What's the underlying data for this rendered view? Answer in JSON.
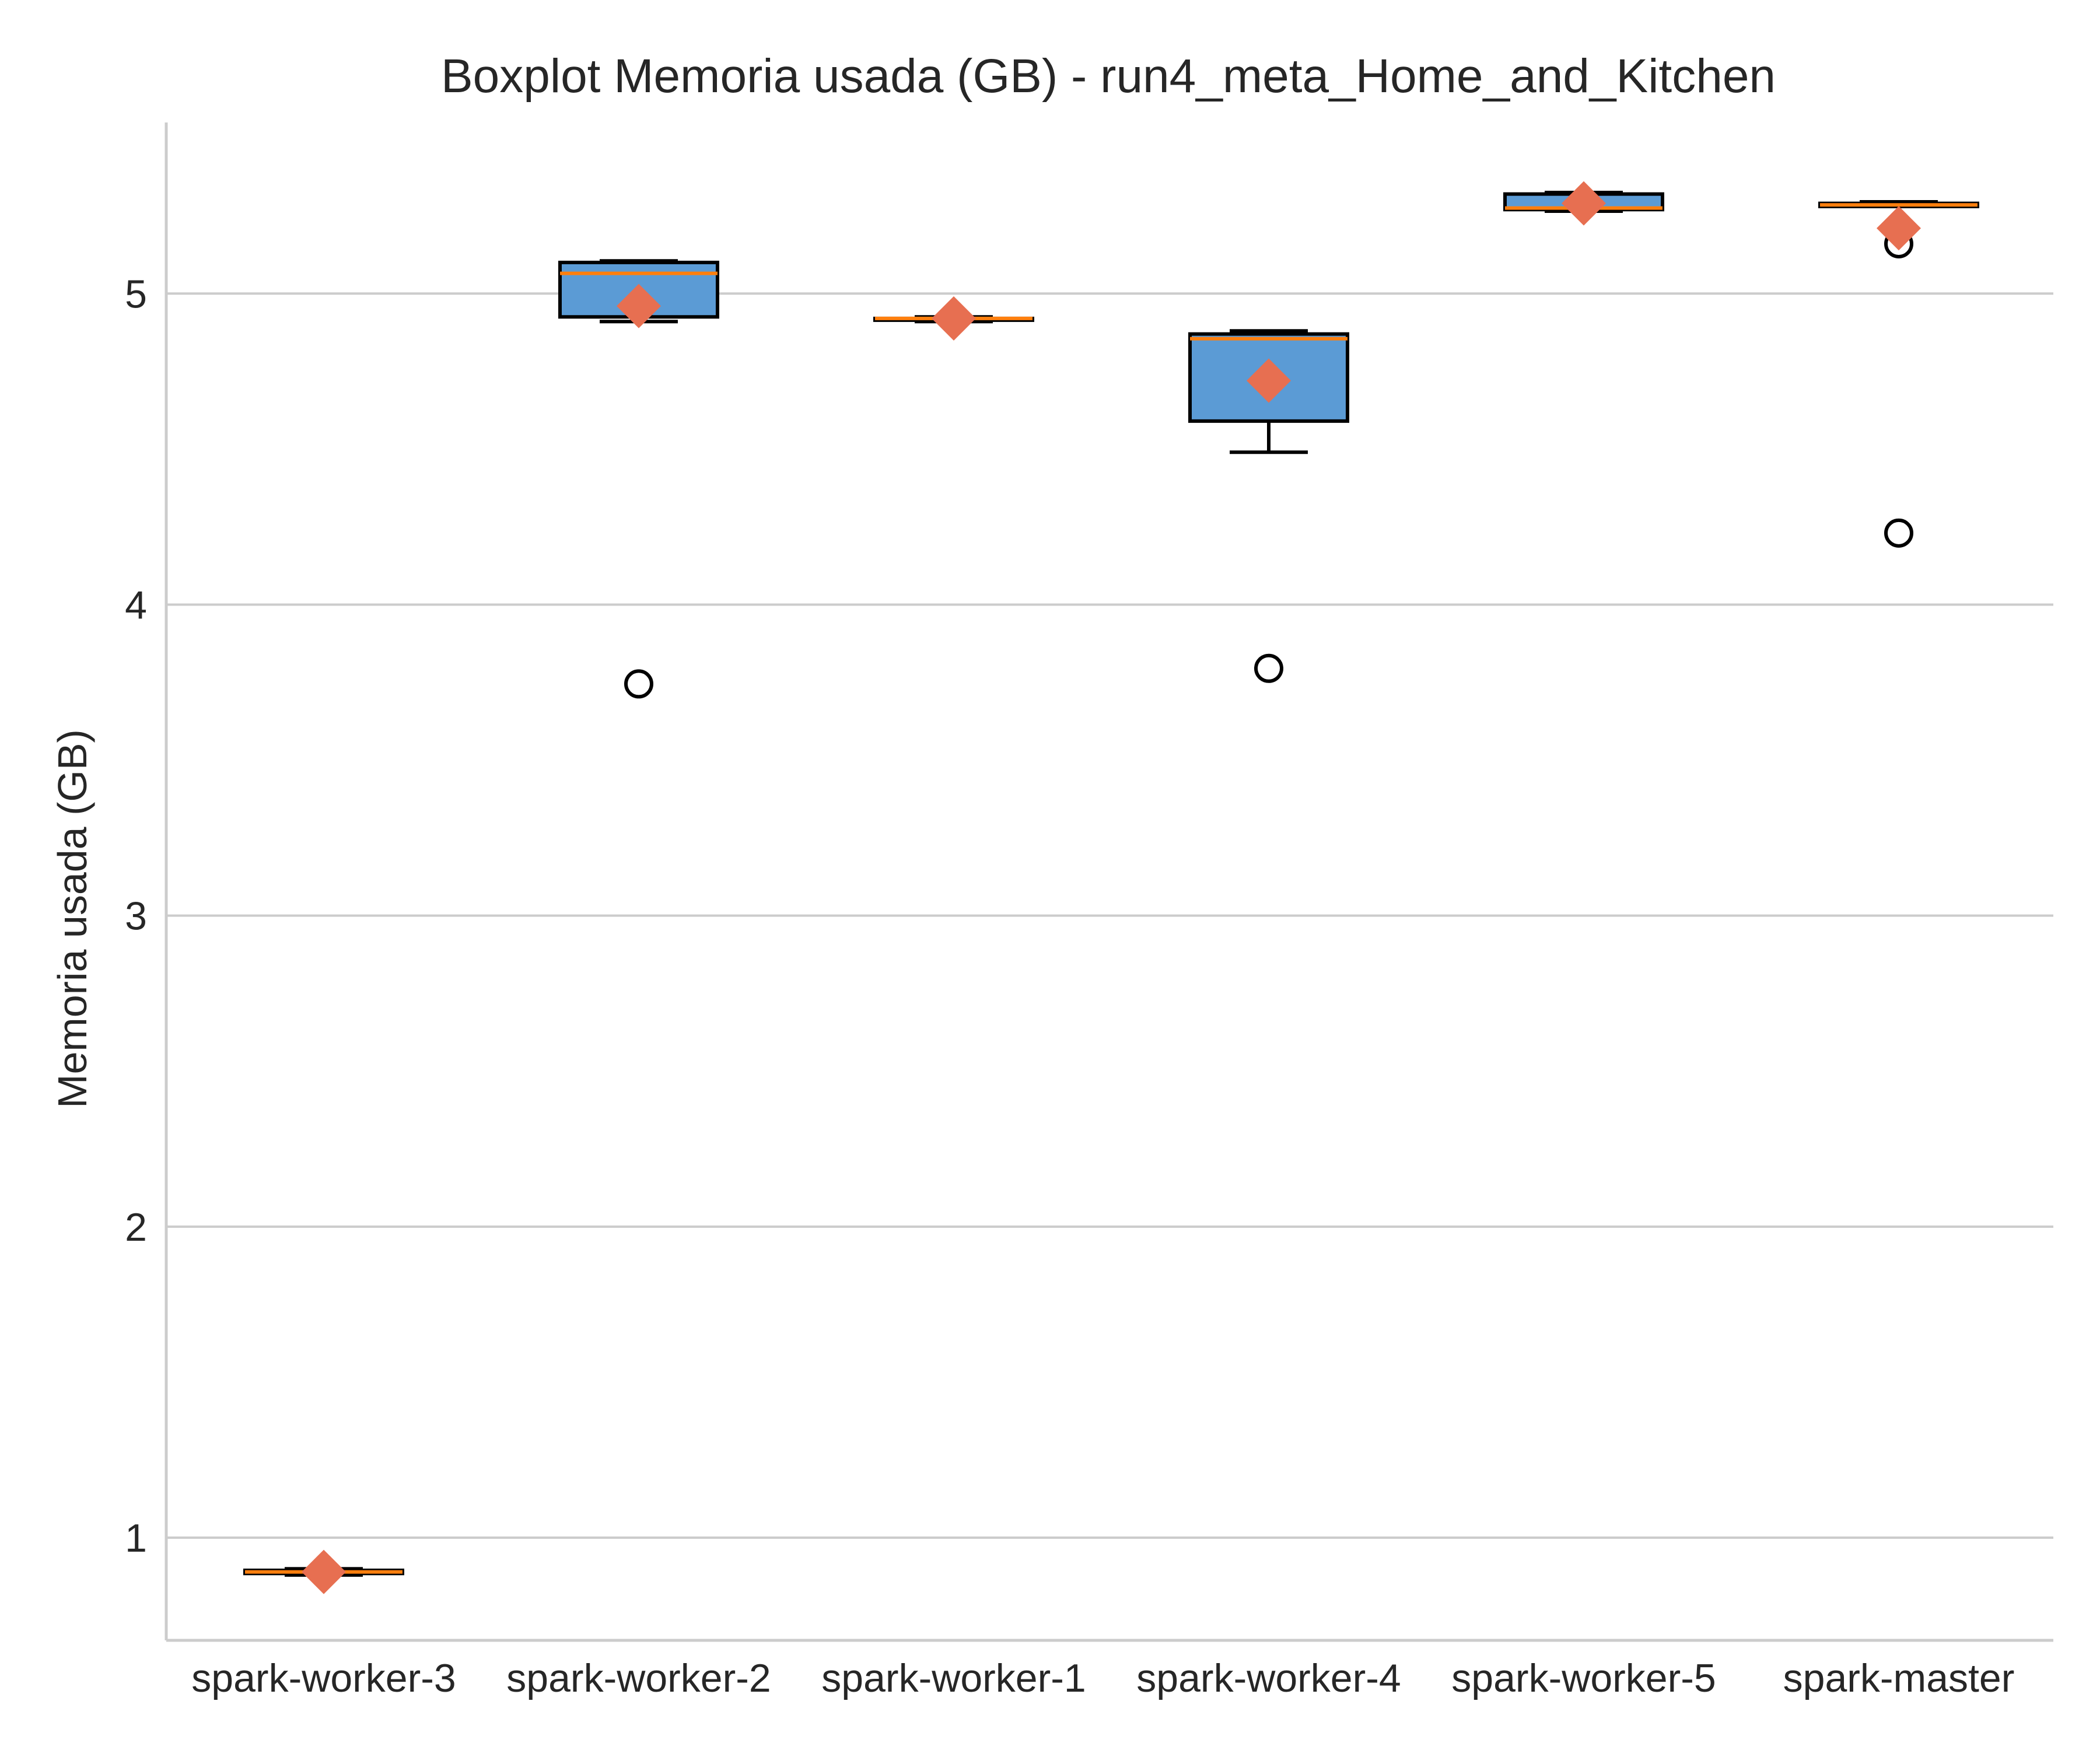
{
  "chart_data": {
    "type": "boxplot",
    "title": "Boxplot Memoria usada (GB) - run4_meta_Home_and_Kitchen",
    "xlabel": "",
    "ylabel": "Memoria usada (GB)",
    "ylim": [
      0.67,
      5.55
    ],
    "yticks": [
      1,
      2,
      3,
      4,
      5
    ],
    "grid": "horizontal",
    "categories": [
      "spark-worker-3",
      "spark-worker-2",
      "spark-worker-1",
      "spark-worker-4",
      "spark-worker-5",
      "spark-master"
    ],
    "boxes": [
      {
        "whislo": 0.88,
        "q1": 0.885,
        "med": 0.89,
        "q3": 0.895,
        "whishi": 0.9,
        "mean": 0.89,
        "fliers": []
      },
      {
        "whislo": 4.91,
        "q1": 4.925,
        "med": 5.065,
        "q3": 5.1,
        "whishi": 5.105,
        "mean": 4.96,
        "fliers": [
          3.745
        ]
      },
      {
        "whislo": 4.91,
        "q1": 4.915,
        "med": 4.92,
        "q3": 4.92,
        "whishi": 4.925,
        "mean": 4.92,
        "fliers": []
      },
      {
        "whislo": 4.49,
        "q1": 4.59,
        "med": 4.855,
        "q3": 4.87,
        "whishi": 4.88,
        "mean": 4.72,
        "fliers": [
          3.795
        ]
      },
      {
        "whislo": 5.265,
        "q1": 5.27,
        "med": 5.275,
        "q3": 5.32,
        "whishi": 5.325,
        "mean": 5.29,
        "fliers": []
      },
      {
        "whislo": 5.28,
        "q1": 5.28,
        "med": 5.285,
        "q3": 5.29,
        "whishi": 5.295,
        "mean": 5.21,
        "fliers": [
          5.16,
          4.23
        ]
      }
    ],
    "colors": {
      "box_fill": "#5b9bd5",
      "box_edge": "#000000",
      "median": "#ff7f0e",
      "mean_marker": "#e76f51",
      "grid": "#cccccc",
      "axis": "#cccccc",
      "text": "#262626"
    }
  }
}
